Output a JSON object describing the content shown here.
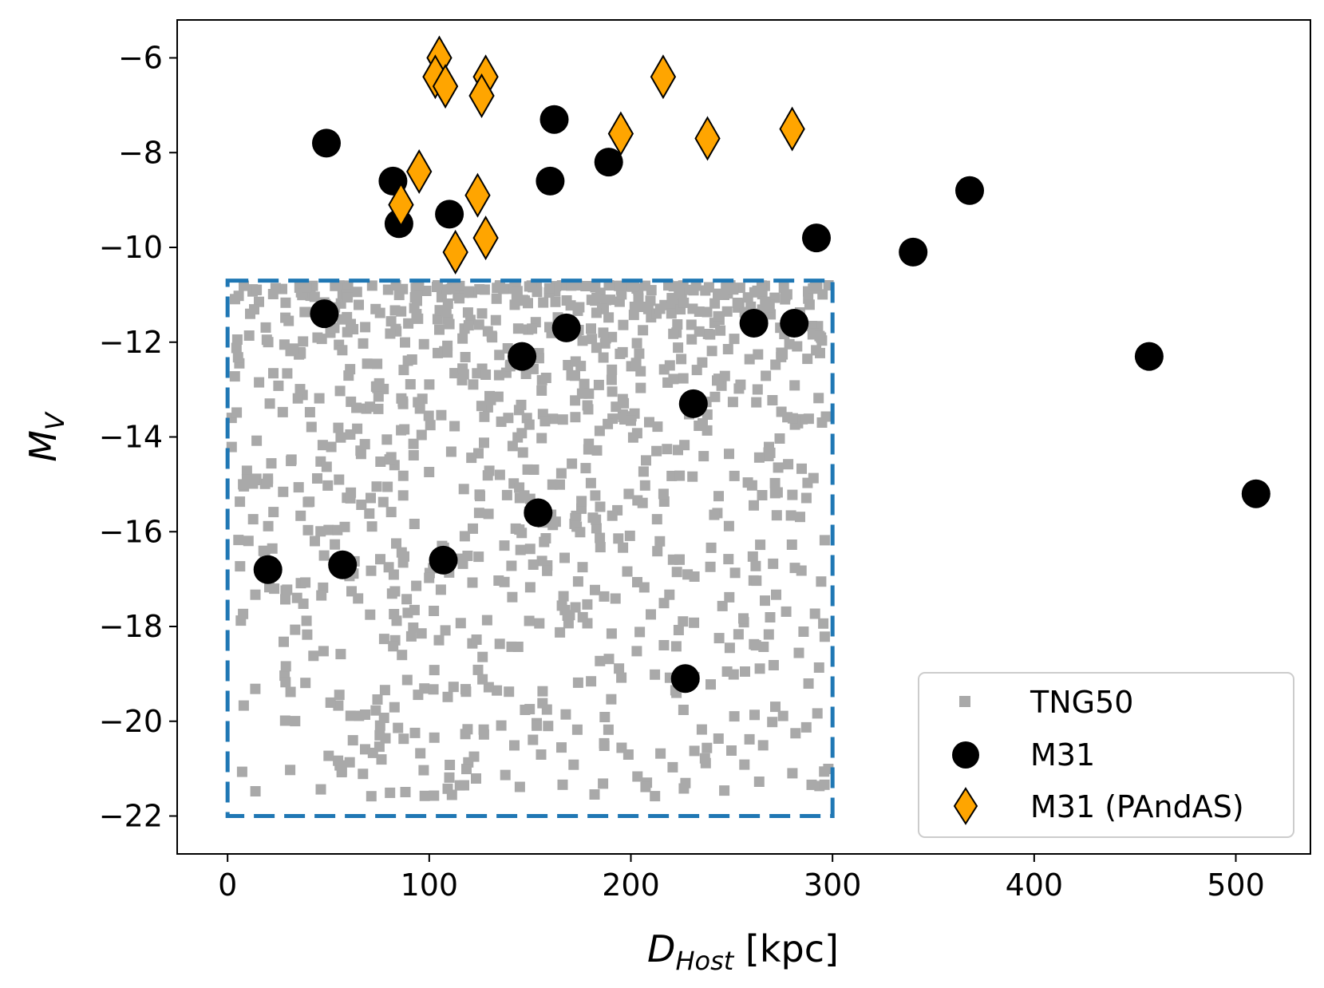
{
  "chart_data": {
    "type": "scatter",
    "xlabel_main": "D",
    "xlabel_sub": "Host",
    "xlabel_unit": " [kpc]",
    "ylabel_main": "M",
    "ylabel_sub": "V",
    "xlim": [
      -25,
      537
    ],
    "ylim": [
      -22.8,
      -5.2
    ],
    "x_ticks": [
      0,
      100,
      200,
      300,
      400,
      500
    ],
    "y_ticks": [
      -6,
      -8,
      -10,
      -12,
      -14,
      -16,
      -18,
      -20,
      -22
    ],
    "x_tick_labels": [
      "0",
      "100",
      "200",
      "300",
      "400",
      "500"
    ],
    "y_tick_labels": [
      "−6",
      "−8",
      "−10",
      "−12",
      "−14",
      "−16",
      "−18",
      "−20",
      "−22"
    ],
    "grid": false,
    "legend_position": "lower-right",
    "selection_box": {
      "x_range": [
        0,
        300
      ],
      "y_range": [
        -22,
        -10.7
      ],
      "color": "#1f77b4",
      "style": "dashed"
    },
    "series": [
      {
        "name": "TNG50",
        "marker": "square",
        "color": "#a9a9a9",
        "note_count": 1000
      },
      {
        "name": "M31",
        "marker": "circle",
        "color": "#000000",
        "x": [
          49,
          48,
          82,
          85,
          110,
          162,
          160,
          189,
          292,
          340,
          368,
          457,
          510,
          20,
          57,
          107,
          146,
          154,
          168,
          227,
          231,
          261,
          281
        ],
        "y": [
          -7.8,
          -11.4,
          -8.6,
          -9.5,
          -9.3,
          -7.3,
          -8.6,
          -8.2,
          -9.8,
          -10.1,
          -8.8,
          -12.3,
          -15.2,
          -16.8,
          -16.7,
          -16.6,
          -12.3,
          -15.6,
          -11.7,
          -19.1,
          -13.3,
          -11.6,
          -11.6
        ]
      },
      {
        "name": "M31 (PAndAS)",
        "marker": "diamond",
        "color": "#ffa500",
        "x": [
          105,
          103,
          108,
          128,
          126,
          95,
          86,
          124,
          113,
          128,
          195,
          216,
          238,
          280
        ],
        "y": [
          -6.0,
          -6.4,
          -6.6,
          -6.4,
          -6.8,
          -8.4,
          -9.1,
          -8.9,
          -10.1,
          -9.8,
          -7.6,
          -6.4,
          -7.7,
          -7.5
        ]
      }
    ]
  }
}
